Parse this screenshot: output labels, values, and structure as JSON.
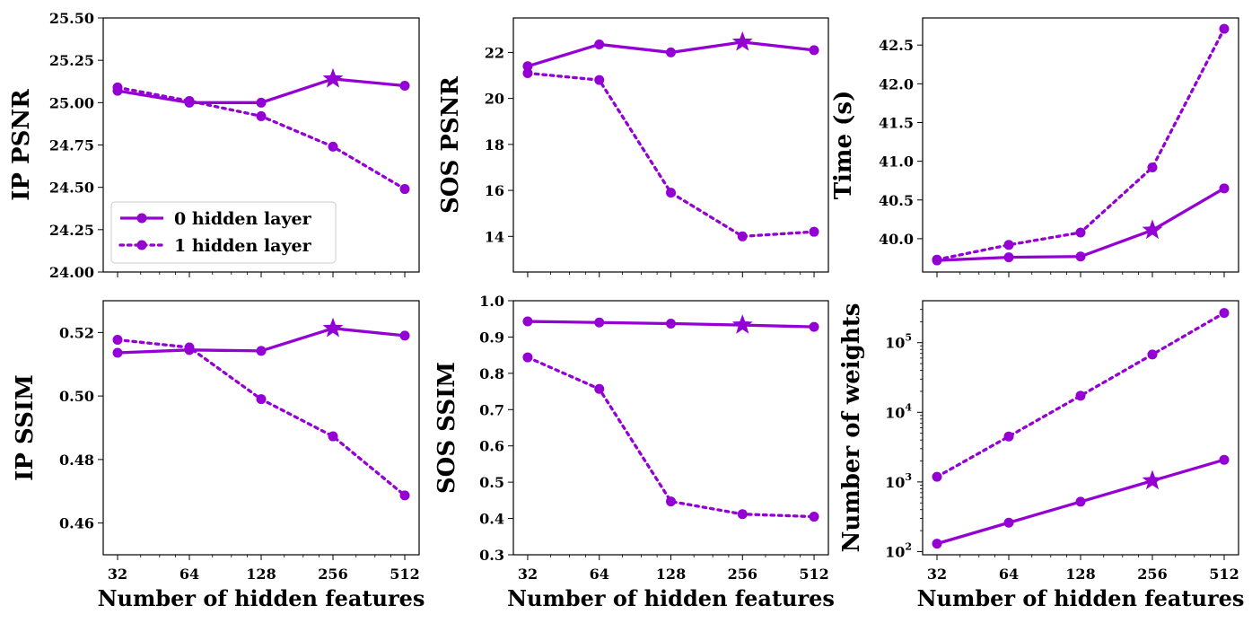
{
  "colors": {
    "series": "#9400D3"
  },
  "chart_data": [
    {
      "id": "ip_psnr",
      "type": "line",
      "ylabel": "IP PSNR",
      "xlabel": "",
      "x": [
        32,
        64,
        128,
        256,
        512
      ],
      "xscale": "log2",
      "ylim": [
        24.0,
        25.5
      ],
      "yticks": [
        "24.00",
        "24.25",
        "24.50",
        "24.75",
        "25.00",
        "25.25",
        "25.50"
      ],
      "legend": "lower-left",
      "star_index": 3,
      "series": [
        {
          "name": "0 hidden layer",
          "style": "solid",
          "values": [
            25.07,
            25.0,
            25.0,
            25.14,
            25.1
          ]
        },
        {
          "name": "1 hidden layer",
          "style": "dotted",
          "values": [
            25.09,
            25.01,
            24.92,
            24.74,
            24.49
          ]
        }
      ]
    },
    {
      "id": "sos_psnr",
      "type": "line",
      "ylabel": "SOS PSNR",
      "xlabel": "",
      "x": [
        32,
        64,
        128,
        256,
        512
      ],
      "xscale": "log2",
      "ylim": [
        12.45,
        23.5
      ],
      "yticks": [
        "14",
        "16",
        "18",
        "20",
        "22"
      ],
      "star_index": 3,
      "series": [
        {
          "style": "solid",
          "values": [
            21.4,
            22.35,
            22.0,
            22.45,
            22.1
          ]
        },
        {
          "style": "dotted",
          "values": [
            21.1,
            20.8,
            15.9,
            14.0,
            14.2
          ]
        }
      ]
    },
    {
      "id": "time",
      "type": "line",
      "ylabel": "Time (s)",
      "xlabel": "",
      "x": [
        32,
        64,
        128,
        256,
        512
      ],
      "xscale": "log2",
      "ylim": [
        39.57,
        42.85
      ],
      "yticks": [
        "40.0",
        "40.5",
        "41.0",
        "41.5",
        "42.0",
        "42.5"
      ],
      "star_index": 3,
      "series": [
        {
          "style": "solid",
          "values": [
            39.72,
            39.76,
            39.77,
            40.11,
            40.65
          ]
        },
        {
          "style": "dotted",
          "values": [
            39.73,
            39.92,
            40.08,
            40.92,
            42.71
          ]
        }
      ]
    },
    {
      "id": "ip_ssim",
      "type": "line",
      "ylabel": "IP SSIM",
      "xlabel": "Number of hidden features",
      "x": [
        32,
        64,
        128,
        256,
        512
      ],
      "xscale": "log2",
      "xticks": [
        "32",
        "64",
        "128",
        "256",
        "512"
      ],
      "ylim": [
        0.45,
        0.53
      ],
      "yticks": [
        "0.46",
        "0.48",
        "0.50",
        "0.52"
      ],
      "star_index": 3,
      "series": [
        {
          "style": "solid",
          "values": [
            0.5136,
            0.5145,
            0.5142,
            0.5213,
            0.519
          ]
        },
        {
          "style": "dotted",
          "values": [
            0.5177,
            0.5153,
            0.499,
            0.4873,
            0.4687
          ]
        }
      ]
    },
    {
      "id": "sos_ssim",
      "type": "line",
      "ylabel": "SOS SSIM",
      "xlabel": "Number of hidden features",
      "x": [
        32,
        64,
        128,
        256,
        512
      ],
      "xscale": "log2",
      "xticks": [
        "32",
        "64",
        "128",
        "256",
        "512"
      ],
      "ylim": [
        0.3,
        1.0
      ],
      "yticks": [
        "0.3",
        "0.4",
        "0.5",
        "0.6",
        "0.7",
        "0.8",
        "0.9",
        "1.0"
      ],
      "star_index": 3,
      "series": [
        {
          "style": "solid",
          "values": [
            0.943,
            0.94,
            0.937,
            0.933,
            0.928
          ]
        },
        {
          "style": "dotted",
          "values": [
            0.844,
            0.757,
            0.447,
            0.412,
            0.405
          ]
        }
      ]
    },
    {
      "id": "weights",
      "type": "line",
      "ylabel": "Number of weights",
      "xlabel": "Number of hidden features",
      "x": [
        32,
        64,
        128,
        256,
        512
      ],
      "xscale": "log2",
      "xticks": [
        "32",
        "64",
        "128",
        "256",
        "512"
      ],
      "yscale": "log10",
      "ylim": [
        90,
        400000
      ],
      "yticks": [
        {
          "exp": "2",
          "value": 100
        },
        {
          "exp": "3",
          "value": 1000
        },
        {
          "exp": "4",
          "value": 10000
        },
        {
          "exp": "5",
          "value": 100000
        }
      ],
      "star_index": 3,
      "series": [
        {
          "style": "solid",
          "values": [
            130,
            260,
            520,
            1040,
            2080
          ]
        },
        {
          "style": "dotted",
          "values": [
            1185,
            4500,
            17300,
            67600,
            267000
          ]
        }
      ]
    }
  ]
}
